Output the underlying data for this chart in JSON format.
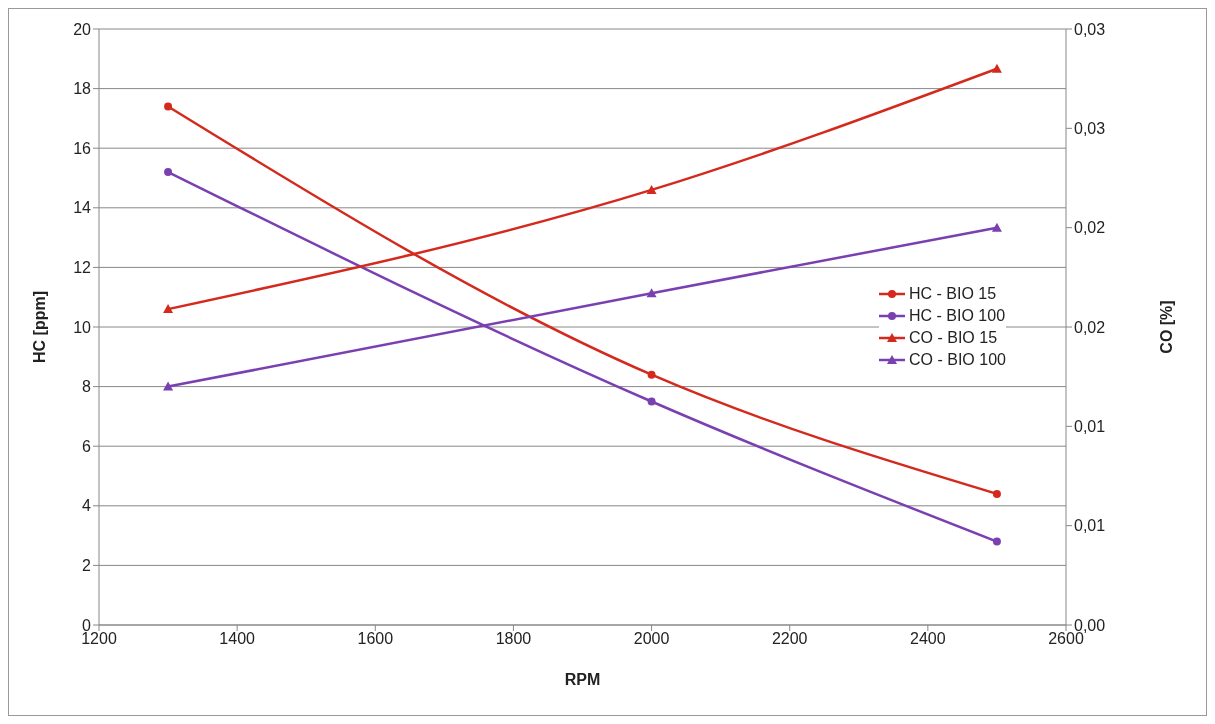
{
  "chart_data": {
    "type": "line",
    "xlabel": "RPM",
    "ylabel": "HC [ppm]",
    "y2label": "CO [%]",
    "x": [
      1300,
      2000,
      2500
    ],
    "xlim": [
      1200,
      2600
    ],
    "xticks": [
      1200,
      1400,
      1600,
      1800,
      2000,
      2200,
      2400,
      2600
    ],
    "ylim": [
      0,
      20
    ],
    "yticks": [
      0,
      2,
      4,
      6,
      8,
      10,
      12,
      14,
      16,
      18,
      20
    ],
    "y2lim": [
      0,
      0.03
    ],
    "y2ticks": [
      {
        "value": 0,
        "label": "0,00"
      },
      {
        "value": 0.005,
        "label": "0,01"
      },
      {
        "value": 0.01,
        "label": "0,01"
      },
      {
        "value": 0.015,
        "label": "0,02"
      },
      {
        "value": 0.02,
        "label": "0,02"
      },
      {
        "value": 0.025,
        "label": "0,03"
      },
      {
        "value": 0.03,
        "label": "0,03"
      }
    ],
    "grid": "y",
    "legend": "right",
    "series": [
      {
        "name": "HC - BIO 15",
        "color": "#d42a1e",
        "values": [
          17.4,
          8.4,
          4.4
        ],
        "marker": "circle"
      },
      {
        "name": "HC - BIO 100",
        "color": "#7a3fb0",
        "values": [
          15.2,
          7.5,
          2.8
        ],
        "marker": "circle"
      },
      {
        "name": "CO - BIO 15",
        "color": "#d42a1e",
        "values": [
          0.0159,
          0.0219,
          0.028
        ],
        "marker": "triangle",
        "axis": "y2"
      },
      {
        "name": "CO - BIO 100",
        "color": "#7a3fb0",
        "values": [
          0.012,
          0.0167,
          0.02
        ],
        "marker": "triangle",
        "axis": "y2"
      }
    ]
  }
}
